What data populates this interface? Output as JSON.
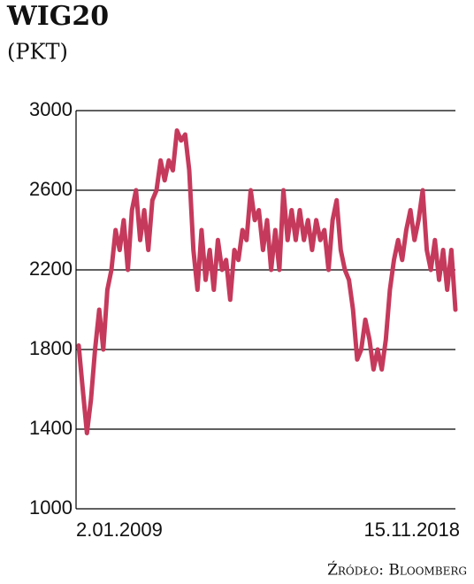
{
  "chart_data": {
    "type": "line",
    "title": "WIG20",
    "subtitle": "(PKT)",
    "source": "Źródło: Bloomberg",
    "color": "#c53a5c",
    "ylim": [
      1000,
      3000
    ],
    "yticks": [
      1000,
      1400,
      1800,
      2200,
      2600,
      3000
    ],
    "grid": true,
    "categories": [
      "2.01.2009",
      null,
      null,
      null,
      null,
      null,
      null,
      null,
      null,
      null,
      null,
      null,
      null,
      null,
      null,
      null,
      null,
      null,
      null,
      null,
      null,
      null,
      null,
      null,
      null,
      null,
      null,
      null,
      null,
      null,
      null,
      null,
      null,
      null,
      null,
      null,
      null,
      null,
      null,
      null,
      null,
      null,
      null,
      null,
      null,
      null,
      null,
      null,
      null,
      null,
      null,
      null,
      null,
      null,
      null,
      null,
      null,
      null,
      null,
      null,
      null,
      null,
      null,
      null,
      null,
      null,
      null,
      null,
      null,
      null,
      null,
      null,
      null,
      null,
      null,
      null,
      null,
      null,
      null,
      null,
      null,
      null,
      null,
      null,
      null,
      null,
      null,
      null,
      null,
      null,
      null,
      null,
      "15.11.2018"
    ],
    "values": [
      1820,
      1600,
      1380,
      1550,
      1800,
      2000,
      1800,
      2100,
      2200,
      2400,
      2300,
      2450,
      2200,
      2500,
      2600,
      2350,
      2500,
      2300,
      2550,
      2600,
      2750,
      2650,
      2750,
      2700,
      2900,
      2850,
      2880,
      2700,
      2300,
      2100,
      2400,
      2150,
      2300,
      2100,
      2350,
      2200,
      2250,
      2050,
      2300,
      2250,
      2400,
      2350,
      2600,
      2450,
      2500,
      2300,
      2450,
      2200,
      2400,
      2200,
      2600,
      2350,
      2500,
      2350,
      2500,
      2350,
      2450,
      2300,
      2450,
      2350,
      2400,
      2200,
      2450,
      2550,
      2300,
      2200,
      2150,
      2000,
      1750,
      1800,
      1950,
      1850,
      1700,
      1800,
      1700,
      1850,
      2100,
      2250,
      2350,
      2250,
      2400,
      2500,
      2350,
      2450,
      2600,
      2300,
      2200,
      2350,
      2150,
      2300,
      2100,
      2300,
      2000
    ]
  }
}
